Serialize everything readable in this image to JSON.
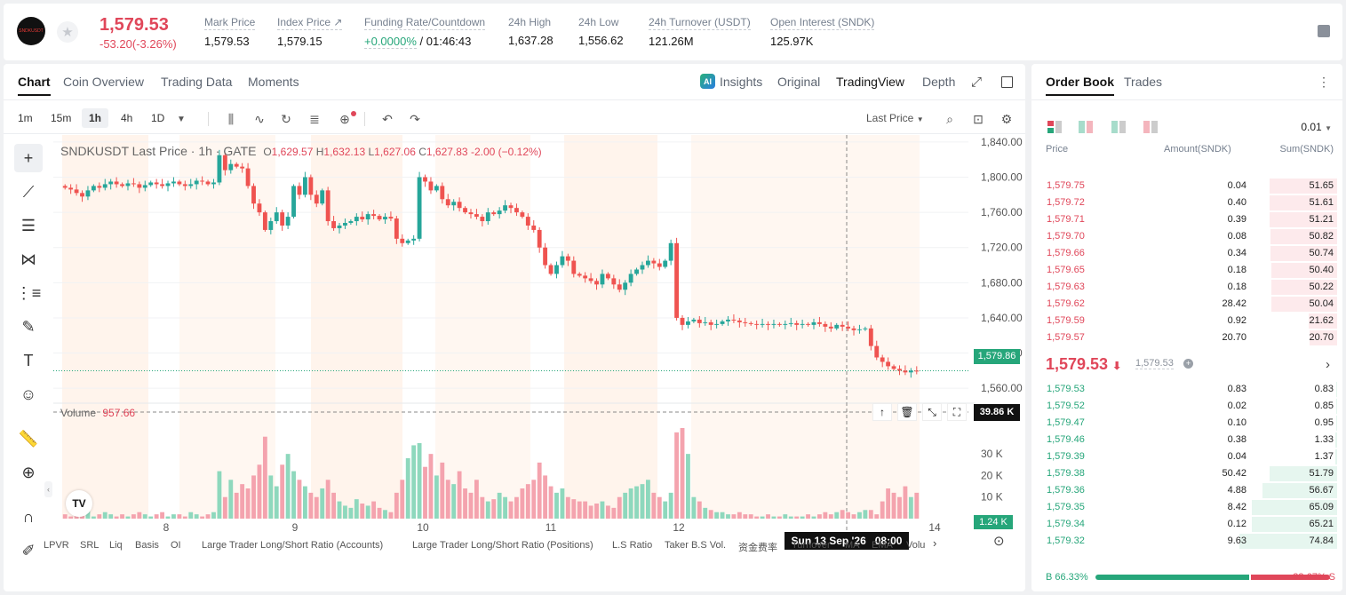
{
  "header": {
    "logo_text": "SNDKUSDT",
    "last_price": "1,579.53",
    "change": "-53.20(-3.26%)",
    "stats": [
      {
        "label": "Mark Price",
        "value": "1,579.53"
      },
      {
        "label": "Index Price ↗",
        "value": "1,579.15"
      },
      {
        "label": "Funding Rate/Countdown",
        "value_green": "+0.0000%",
        "value": " / 01:46:43"
      },
      {
        "label": "24h High",
        "value": "1,637.28"
      },
      {
        "label": "24h Low",
        "value": "1,556.62"
      },
      {
        "label": "24h Turnover (USDT)",
        "value": "121.26M"
      },
      {
        "label": "Open Interest (SNDK)",
        "value": "125.97K"
      }
    ]
  },
  "chart_panel": {
    "tabs": [
      "Chart",
      "Coin Overview",
      "Trading Data",
      "Moments"
    ],
    "views": [
      "Insights",
      "Original",
      "TradingView",
      "Depth"
    ],
    "intervals": [
      "1m",
      "15m",
      "1h",
      "4h",
      "1D"
    ],
    "active_interval": "1h",
    "price_mode": "Last Price",
    "legend": {
      "symbol": "SNDKUSDT Last Price · 1h · GATE",
      "o_label": "O",
      "o": "1,629.57",
      "h_label": "H",
      "h": "1,632.13",
      "l_label": "L",
      "l": "1,627.06",
      "c_label": "C",
      "c": "1,627.83",
      "chg": "-2.00 (−0.12%)"
    },
    "volume_label": "Volume",
    "volume_value": "957.66",
    "current_price_tag": "1,579.86",
    "crosshair_volume_tag": "39.86 K",
    "last_volume_tag": "1.24 K",
    "crosshair_time": "Sun 13 Sep '26   08:00",
    "bottom_tabs": [
      "LPVR",
      "SRL",
      "Liq",
      "Basis",
      "OI",
      "Large Trader Long/Short Ratio (Accounts)",
      "Large Trader Long/Short Ratio (Positions)",
      "L.S Ratio",
      "Taker B.S Vol.",
      "资金费率",
      "Turnover",
      "MA",
      "EMA",
      "Volu"
    ]
  },
  "chart_data": {
    "type": "candlestick",
    "y_ticks": [
      "1,840.00",
      "1,800.00",
      "1,760.00",
      "1,720.00",
      "1,680.00",
      "1,640.00",
      "1,600.00",
      "1,560.00"
    ],
    "ylim": [
      1545,
      1848
    ],
    "vol_ticks": [
      "30 K",
      "20 K",
      "10 K"
    ],
    "x_ticks": [
      "8",
      "9",
      "10",
      "11",
      "12",
      "14"
    ],
    "up_color": "#26a69a",
    "down_color": "#ef5350",
    "closes": [
      1788,
      1786,
      1782,
      1778,
      1785,
      1790,
      1788,
      1792,
      1795,
      1792,
      1790,
      1793,
      1792,
      1788,
      1791,
      1794,
      1792,
      1790,
      1793,
      1795,
      1792,
      1790,
      1792,
      1796,
      1795,
      1792,
      1794,
      1825,
      1808,
      1815,
      1812,
      1810,
      1790,
      1770,
      1760,
      1740,
      1750,
      1760,
      1745,
      1755,
      1790,
      1780,
      1800,
      1780,
      1770,
      1785,
      1750,
      1742,
      1745,
      1748,
      1750,
      1755,
      1752,
      1758,
      1756,
      1752,
      1755,
      1753,
      1730,
      1725,
      1728,
      1730,
      1800,
      1795,
      1785,
      1790,
      1775,
      1768,
      1772,
      1765,
      1760,
      1758,
      1755,
      1750,
      1760,
      1758,
      1762,
      1768,
      1765,
      1760,
      1755,
      1745,
      1740,
      1720,
      1700,
      1690,
      1700,
      1710,
      1705,
      1690,
      1688,
      1685,
      1682,
      1678,
      1690,
      1685,
      1678,
      1672,
      1680,
      1690,
      1695,
      1700,
      1705,
      1702,
      1698,
      1705,
      1725,
      1640,
      1632,
      1636,
      1638,
      1634,
      1635,
      1632,
      1633,
      1636,
      1638,
      1637,
      1635,
      1634,
      1633,
      1632,
      1633,
      1632,
      1633,
      1632,
      1633,
      1634,
      1632,
      1633,
      1632,
      1635,
      1633,
      1630,
      1628,
      1632,
      1630,
      1628,
      1626,
      1627,
      1628,
      1608,
      1595,
      1590,
      1585,
      1582,
      1580,
      1578,
      1580,
      1579.86
    ],
    "volumes": [
      2,
      1,
      3,
      2,
      4,
      1,
      2,
      3,
      2,
      1,
      2,
      1,
      2,
      3,
      2,
      1,
      2,
      3,
      1,
      2,
      2,
      1,
      3,
      2,
      1,
      2,
      3,
      22,
      10,
      18,
      12,
      16,
      14,
      20,
      25,
      38,
      20,
      15,
      25,
      30,
      22,
      18,
      15,
      12,
      10,
      14,
      18,
      12,
      8,
      6,
      5,
      9,
      7,
      6,
      8,
      5,
      4,
      3,
      12,
      18,
      28,
      34,
      35,
      24,
      30,
      20,
      26,
      18,
      16,
      22,
      14,
      12,
      18,
      10,
      8,
      9,
      12,
      10,
      8,
      10,
      14,
      16,
      18,
      26,
      20,
      15,
      12,
      14,
      10,
      9,
      8,
      8,
      6,
      7,
      8,
      6,
      5,
      10,
      12,
      14,
      15,
      16,
      18,
      12,
      10,
      8,
      12,
      40,
      42,
      30,
      10,
      8,
      5,
      4,
      3,
      3,
      2,
      2,
      3,
      2,
      2,
      1,
      1,
      2,
      1,
      1,
      2,
      1,
      1,
      1,
      2,
      1,
      2,
      3,
      2,
      3,
      4,
      3,
      2,
      3,
      4,
      4,
      2,
      8,
      14,
      12,
      10,
      15,
      10,
      12,
      8,
      6,
      5
    ]
  },
  "orderbook": {
    "tabs": [
      "Order Book",
      "Trades"
    ],
    "precision": "0.01",
    "headers": [
      "Price",
      "Amount(SNDK)",
      "Sum(SNDK)"
    ],
    "asks": [
      {
        "p": "1,579.75",
        "a": "0.04",
        "s": "51.65"
      },
      {
        "p": "1,579.72",
        "a": "0.40",
        "s": "51.61"
      },
      {
        "p": "1,579.71",
        "a": "0.39",
        "s": "51.21"
      },
      {
        "p": "1,579.70",
        "a": "0.08",
        "s": "50.82"
      },
      {
        "p": "1,579.66",
        "a": "0.34",
        "s": "50.74"
      },
      {
        "p": "1,579.65",
        "a": "0.18",
        "s": "50.40"
      },
      {
        "p": "1,579.63",
        "a": "0.18",
        "s": "50.22"
      },
      {
        "p": "1,579.62",
        "a": "28.42",
        "s": "50.04"
      },
      {
        "p": "1,579.59",
        "a": "0.92",
        "s": "21.62"
      },
      {
        "p": "1,579.57",
        "a": "20.70",
        "s": "20.70"
      }
    ],
    "mid_price": "1,579.53",
    "mid_arrow": "⬇",
    "mid_mark": "1,579.53",
    "bids": [
      {
        "p": "1,579.53",
        "a": "0.83",
        "s": "0.83"
      },
      {
        "p": "1,579.52",
        "a": "0.02",
        "s": "0.85"
      },
      {
        "p": "1,579.47",
        "a": "0.10",
        "s": "0.95"
      },
      {
        "p": "1,579.46",
        "a": "0.38",
        "s": "1.33"
      },
      {
        "p": "1,579.39",
        "a": "0.04",
        "s": "1.37"
      },
      {
        "p": "1,579.38",
        "a": "50.42",
        "s": "51.79"
      },
      {
        "p": "1,579.36",
        "a": "4.88",
        "s": "56.67"
      },
      {
        "p": "1,579.35",
        "a": "8.42",
        "s": "65.09"
      },
      {
        "p": "1,579.34",
        "a": "0.12",
        "s": "65.21"
      },
      {
        "p": "1,579.32",
        "a": "9.63",
        "s": "74.84"
      }
    ],
    "buy_ratio": "B 66.33%",
    "sell_ratio": "33.67% S",
    "buy_fraction": 0.6633
  },
  "colors": {
    "up": "#26a67a",
    "down": "#e0475a",
    "accent": "#141414"
  }
}
